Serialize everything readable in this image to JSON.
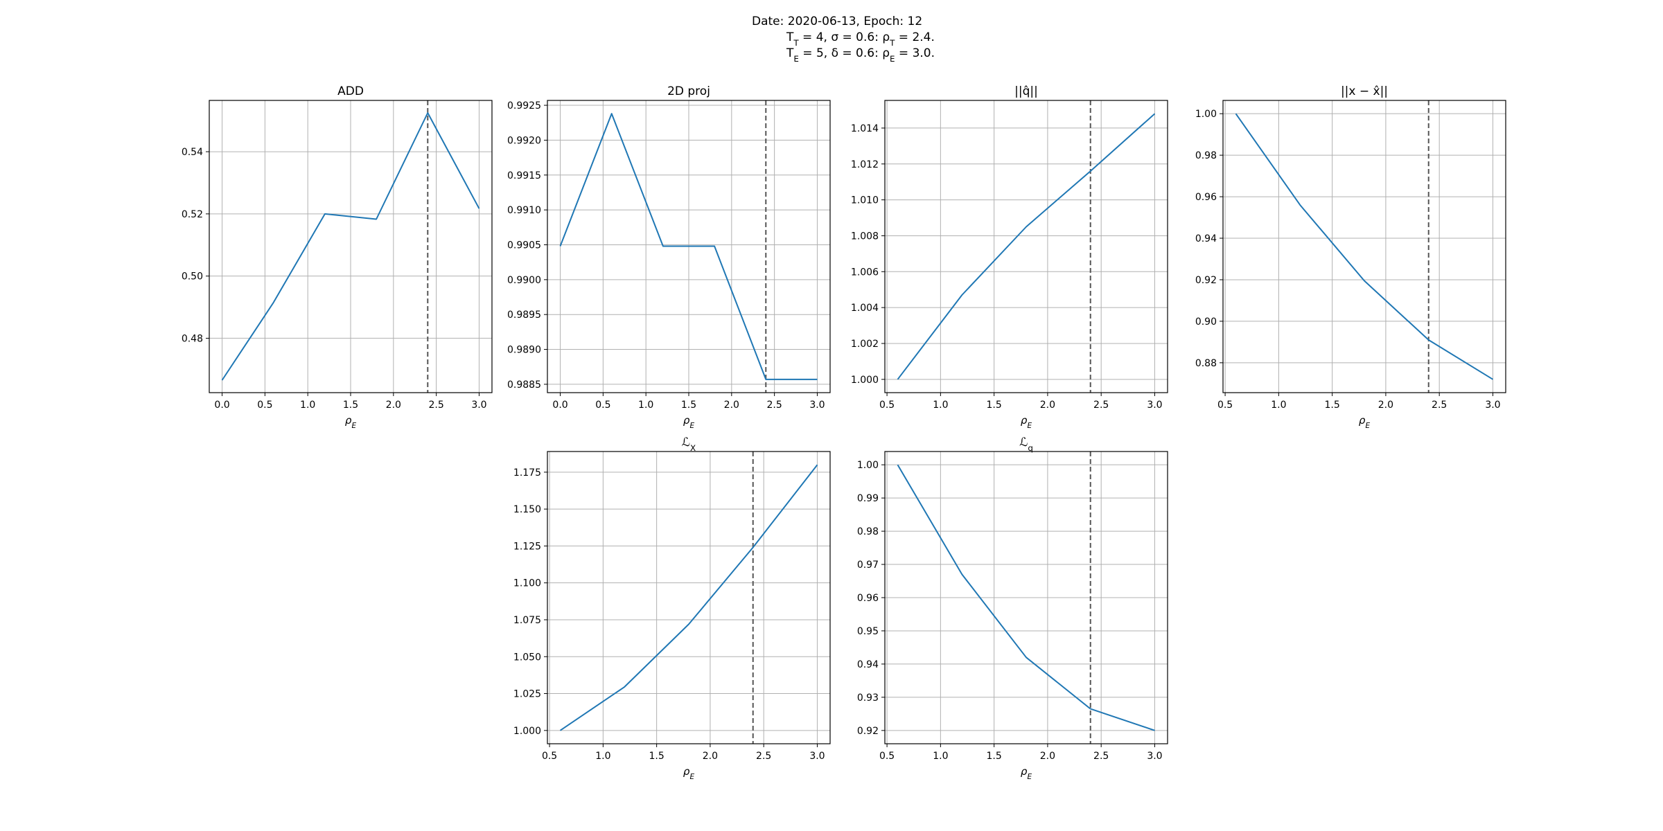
{
  "header": {
    "line1": "Date: 2020-06-13, Epoch: 12",
    "line2": "T_T = 4, σ = 0.6: ρ_T = 2.4.",
    "line3": "T_E = 5, δ = 0.6: ρ_E = 3.0."
  },
  "colors": {
    "line": "#1f77b4",
    "vline": "#555555",
    "grid": "#b0b0b0"
  },
  "chart_data": [
    {
      "type": "line",
      "title": "ADD",
      "xlabel": "ρ_E",
      "x": [
        0.0,
        0.6,
        1.2,
        1.8,
        2.4,
        3.0
      ],
      "series": [
        {
          "values": [
            0.4665,
            0.4915,
            0.52,
            0.5183,
            0.5525,
            0.5217
          ]
        }
      ],
      "xlim": [
        -0.15,
        3.15
      ],
      "ylim": [
        0.4625,
        0.5565
      ],
      "xticks": [
        0.0,
        0.5,
        1.0,
        1.5,
        2.0,
        2.5,
        3.0
      ],
      "yticks": [
        0.48,
        0.5,
        0.52,
        0.54
      ],
      "xtick_labels": [
        "0.0",
        "0.5",
        "1.0",
        "1.5",
        "2.0",
        "2.5",
        "3.0"
      ],
      "ytick_labels": [
        "0.48",
        "0.50",
        "0.52",
        "0.54"
      ],
      "vline": 2.4,
      "grid": true
    },
    {
      "type": "line",
      "title": "2D proj",
      "xlabel": "ρ_E",
      "x": [
        0.0,
        0.6,
        1.2,
        1.8,
        2.4,
        3.0
      ],
      "series": [
        {
          "values": [
            0.99048,
            0.99238,
            0.99048,
            0.99048,
            0.98857,
            0.98857
          ]
        }
      ],
      "xlim": [
        -0.15,
        3.15
      ],
      "ylim": [
        0.98838,
        0.99257
      ],
      "xticks": [
        0.0,
        0.5,
        1.0,
        1.5,
        2.0,
        2.5,
        3.0
      ],
      "yticks": [
        0.9885,
        0.989,
        0.9895,
        0.99,
        0.9905,
        0.991,
        0.9915,
        0.992,
        0.9925
      ],
      "xtick_labels": [
        "0.0",
        "0.5",
        "1.0",
        "1.5",
        "2.0",
        "2.5",
        "3.0"
      ],
      "ytick_labels": [
        "0.9885",
        "0.9890",
        "0.9895",
        "0.9900",
        "0.9905",
        "0.9910",
        "0.9915",
        "0.9920",
        "0.9925"
      ],
      "vline": 2.4,
      "grid": true
    },
    {
      "type": "line",
      "title": "||q̂||",
      "xlabel": "ρ_E",
      "x": [
        0.6,
        1.2,
        1.8,
        2.4,
        3.0
      ],
      "series": [
        {
          "values": [
            1.0,
            1.0047,
            1.0085,
            1.0116,
            1.0148
          ]
        }
      ],
      "xlim": [
        0.48,
        3.12
      ],
      "ylim": [
        0.99926,
        1.01554
      ],
      "xticks": [
        0.5,
        1.0,
        1.5,
        2.0,
        2.5,
        3.0
      ],
      "yticks": [
        1.0,
        1.002,
        1.004,
        1.006,
        1.008,
        1.01,
        1.012,
        1.014
      ],
      "xtick_labels": [
        "0.5",
        "1.0",
        "1.5",
        "2.0",
        "2.5",
        "3.0"
      ],
      "ytick_labels": [
        "1.000",
        "1.002",
        "1.004",
        "1.006",
        "1.008",
        "1.010",
        "1.012",
        "1.014"
      ],
      "vline": 2.4,
      "grid": true
    },
    {
      "type": "line",
      "title": "||x − x̂||",
      "xlabel": "ρ_E",
      "x": [
        0.6,
        1.2,
        1.8,
        2.4,
        3.0
      ],
      "series": [
        {
          "values": [
            1.0,
            0.956,
            0.9195,
            0.891,
            0.872
          ]
        }
      ],
      "xlim": [
        0.48,
        3.12
      ],
      "ylim": [
        0.8656,
        1.0064
      ],
      "xticks": [
        0.5,
        1.0,
        1.5,
        2.0,
        2.5,
        3.0
      ],
      "yticks": [
        0.88,
        0.9,
        0.92,
        0.94,
        0.96,
        0.98,
        1.0
      ],
      "xtick_labels": [
        "0.5",
        "1.0",
        "1.5",
        "2.0",
        "2.5",
        "3.0"
      ],
      "ytick_labels": [
        "0.88",
        "0.90",
        "0.92",
        "0.94",
        "0.96",
        "0.98",
        "1.00"
      ],
      "vline": 2.4,
      "grid": true
    },
    {
      "type": "line",
      "title": "ℒ_X",
      "xlabel": "ρ_E",
      "x": [
        0.6,
        1.2,
        1.8,
        2.4,
        3.0
      ],
      "series": [
        {
          "values": [
            1.0,
            1.0295,
            1.072,
            1.124,
            1.18
          ]
        }
      ],
      "xlim": [
        0.48,
        3.12
      ],
      "ylim": [
        0.991,
        1.189
      ],
      "xticks": [
        0.5,
        1.0,
        1.5,
        2.0,
        2.5,
        3.0
      ],
      "yticks": [
        1.0,
        1.025,
        1.05,
        1.075,
        1.1,
        1.125,
        1.15,
        1.175
      ],
      "xtick_labels": [
        "0.5",
        "1.0",
        "1.5",
        "2.0",
        "2.5",
        "3.0"
      ],
      "ytick_labels": [
        "1.000",
        "1.025",
        "1.050",
        "1.075",
        "1.100",
        "1.125",
        "1.150",
        "1.175"
      ],
      "vline": 2.4,
      "grid": true
    },
    {
      "type": "line",
      "title": "ℒ_q",
      "xlabel": "ρ_E",
      "x": [
        0.6,
        1.2,
        1.8,
        2.4,
        3.0
      ],
      "series": [
        {
          "values": [
            1.0,
            0.967,
            0.942,
            0.9265,
            0.92
          ]
        }
      ],
      "xlim": [
        0.48,
        3.12
      ],
      "ylim": [
        0.916,
        1.004
      ],
      "xticks": [
        0.5,
        1.0,
        1.5,
        2.0,
        2.5,
        3.0
      ],
      "yticks": [
        0.92,
        0.93,
        0.94,
        0.95,
        0.96,
        0.97,
        0.98,
        0.99,
        1.0
      ],
      "xtick_labels": [
        "0.5",
        "1.0",
        "1.5",
        "2.0",
        "2.5",
        "3.0"
      ],
      "ytick_labels": [
        "0.92",
        "0.93",
        "0.94",
        "0.95",
        "0.96",
        "0.97",
        "0.98",
        "0.99",
        "1.00"
      ],
      "vline": 2.4,
      "grid": true
    }
  ]
}
